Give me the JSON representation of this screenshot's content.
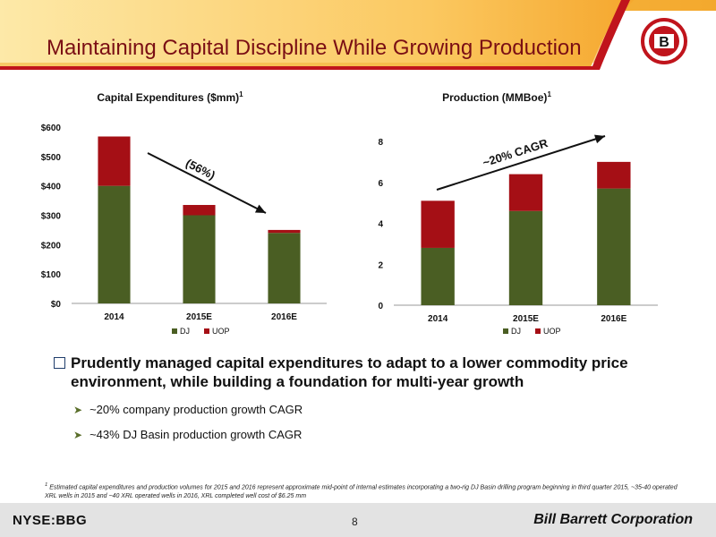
{
  "header": {
    "title": "Maintaining Capital Discipline While Growing Production",
    "logo_letter": "B",
    "colors": {
      "band_light": "#fde7a0",
      "band_dark": "#f5a21c",
      "stripe": "#c0141c",
      "title": "#7a0e14"
    }
  },
  "chart_data": [
    {
      "type": "bar",
      "stacked": true,
      "title": "Capital Expenditures ($mm)",
      "title_sup": "1",
      "categories": [
        "2014",
        "2015E",
        "2016E"
      ],
      "series": [
        {
          "name": "DJ",
          "values": [
            400,
            300,
            240
          ],
          "color": "#4a5e23"
        },
        {
          "name": "UOP",
          "values": [
            168,
            35,
            10
          ],
          "color": "#a50f15"
        }
      ],
      "ylim": [
        0,
        600
      ],
      "yticks": [
        0,
        100,
        200,
        300,
        400,
        500,
        600
      ],
      "ytick_labels": [
        "$0",
        "$100",
        "$200",
        "$300",
        "$400",
        "$500",
        "$600"
      ],
      "legend": "bottom",
      "grid": false,
      "annotation": {
        "text": "(56%)",
        "direction": "down"
      }
    },
    {
      "type": "bar",
      "stacked": true,
      "title": "Production (MMBoe)",
      "title_sup": "1",
      "categories": [
        "2014",
        "2015E",
        "2016E"
      ],
      "series": [
        {
          "name": "DJ",
          "values": [
            2.8,
            4.6,
            5.7
          ],
          "color": "#4a5e23"
        },
        {
          "name": "UOP",
          "values": [
            2.3,
            1.8,
            1.3
          ],
          "color": "#a50f15"
        }
      ],
      "ylim": [
        0,
        8
      ],
      "yticks": [
        0,
        2,
        4,
        6,
        8
      ],
      "ytick_labels": [
        "0",
        "2",
        "4",
        "6",
        "8"
      ],
      "legend": "bottom",
      "grid": false,
      "annotation": {
        "text": "~20% CAGR",
        "direction": "up"
      }
    }
  ],
  "bullets": {
    "main": "Prudently managed capital expenditures to adapt to a lower commodity price environment, while building a foundation for multi-year growth",
    "subs": [
      "~20% company production growth CAGR",
      "~43% DJ Basin production growth CAGR"
    ]
  },
  "footnote": {
    "marker": "1",
    "text": "Estimated capital expenditures and production volumes for 2015 and 2016 represent approximate mid-point of internal estimates incorporating a two-rig DJ Basin drilling program beginning in third quarter 2015, ~35-40 operated XRL wells in 2015 and ~40 XRL operated wells in 2016, XRL completed well cost of $6.25 mm"
  },
  "footer": {
    "ticker": "NYSE:BBG",
    "page_number": "8",
    "company": "Bill Barrett Corporation"
  }
}
